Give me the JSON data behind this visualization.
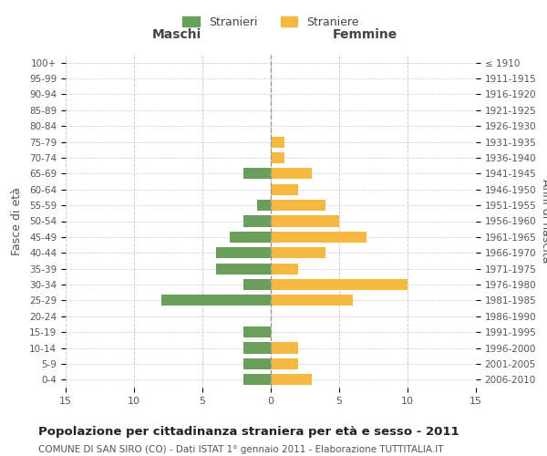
{
  "age_groups": [
    "100+",
    "95-99",
    "90-94",
    "85-89",
    "80-84",
    "75-79",
    "70-74",
    "65-69",
    "60-64",
    "55-59",
    "50-54",
    "45-49",
    "40-44",
    "35-39",
    "30-34",
    "25-29",
    "20-24",
    "15-19",
    "10-14",
    "5-9",
    "0-4"
  ],
  "birth_years": [
    "≤ 1910",
    "1911-1915",
    "1916-1920",
    "1921-1925",
    "1926-1930",
    "1931-1935",
    "1936-1940",
    "1941-1945",
    "1946-1950",
    "1951-1955",
    "1956-1960",
    "1961-1965",
    "1966-1970",
    "1971-1975",
    "1976-1980",
    "1981-1985",
    "1986-1990",
    "1991-1995",
    "1996-2000",
    "2001-2005",
    "2006-2010"
  ],
  "maschi": [
    0,
    0,
    0,
    0,
    0,
    0,
    0,
    2,
    0,
    1,
    2,
    3,
    4,
    4,
    2,
    8,
    0,
    2,
    2,
    2,
    2
  ],
  "femmine": [
    0,
    0,
    0,
    0,
    0,
    1,
    1,
    3,
    2,
    4,
    5,
    7,
    4,
    2,
    10,
    6,
    0,
    0,
    2,
    2,
    3
  ],
  "male_color": "#6a9e5b",
  "female_color": "#f5b942",
  "title": "Popolazione per cittadinanza straniera per età e sesso - 2011",
  "subtitle": "COMUNE DI SAN SIRO (CO) - Dati ISTAT 1° gennaio 2011 - Elaborazione TUTTITALIA.IT",
  "ylabel_left": "Fasce di età",
  "ylabel_right": "Anni di nascita",
  "xlabel_left": "Maschi",
  "xlabel_right": "Femmine",
  "legend_male": "Stranieri",
  "legend_female": "Straniere",
  "xlim": 15,
  "bg_color": "#ffffff",
  "grid_color": "#cccccc"
}
